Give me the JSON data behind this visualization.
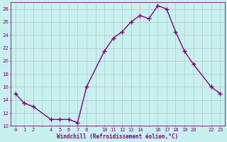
{
  "x": [
    0,
    1,
    2,
    4,
    5,
    6,
    7,
    8,
    10,
    11,
    12,
    13,
    14,
    15,
    16,
    17,
    18,
    19,
    20,
    22,
    23
  ],
  "y": [
    15.0,
    13.5,
    13.0,
    11.0,
    11.0,
    11.0,
    10.5,
    16.0,
    21.5,
    23.5,
    24.5,
    26.0,
    27.0,
    26.5,
    28.5,
    28.0,
    24.5,
    21.5,
    19.5,
    16.0,
    15.0
  ],
  "line_color": "#800080",
  "marker": "+",
  "marker_size": 4,
  "marker_lw": 1.0,
  "bg_color": "#c8f0ee",
  "grid_color": "#b0c8c8",
  "xlabel": "Windchill (Refroidissement éolien,°C)",
  "xlabel_color": "#800080",
  "tick_color": "#800080",
  "ylim": [
    10,
    29
  ],
  "yticks": [
    10,
    12,
    14,
    16,
    18,
    20,
    22,
    24,
    26,
    28
  ],
  "xlim": [
    -0.5,
    23.5
  ],
  "xticks": [
    0,
    1,
    2,
    3,
    4,
    5,
    6,
    7,
    8,
    9,
    10,
    11,
    12,
    13,
    14,
    15,
    16,
    17,
    18,
    19,
    20,
    21,
    22,
    23
  ],
  "xtick_labels": [
    "0",
    "1",
    "2",
    "",
    "4",
    "5",
    "6",
    "7",
    "8",
    "",
    "10",
    "11",
    "12",
    "13",
    "14",
    "",
    "16",
    "17",
    "18",
    "19",
    "20",
    "",
    "22",
    "23"
  ],
  "spine_color": "#800080",
  "linewidth": 1.0
}
